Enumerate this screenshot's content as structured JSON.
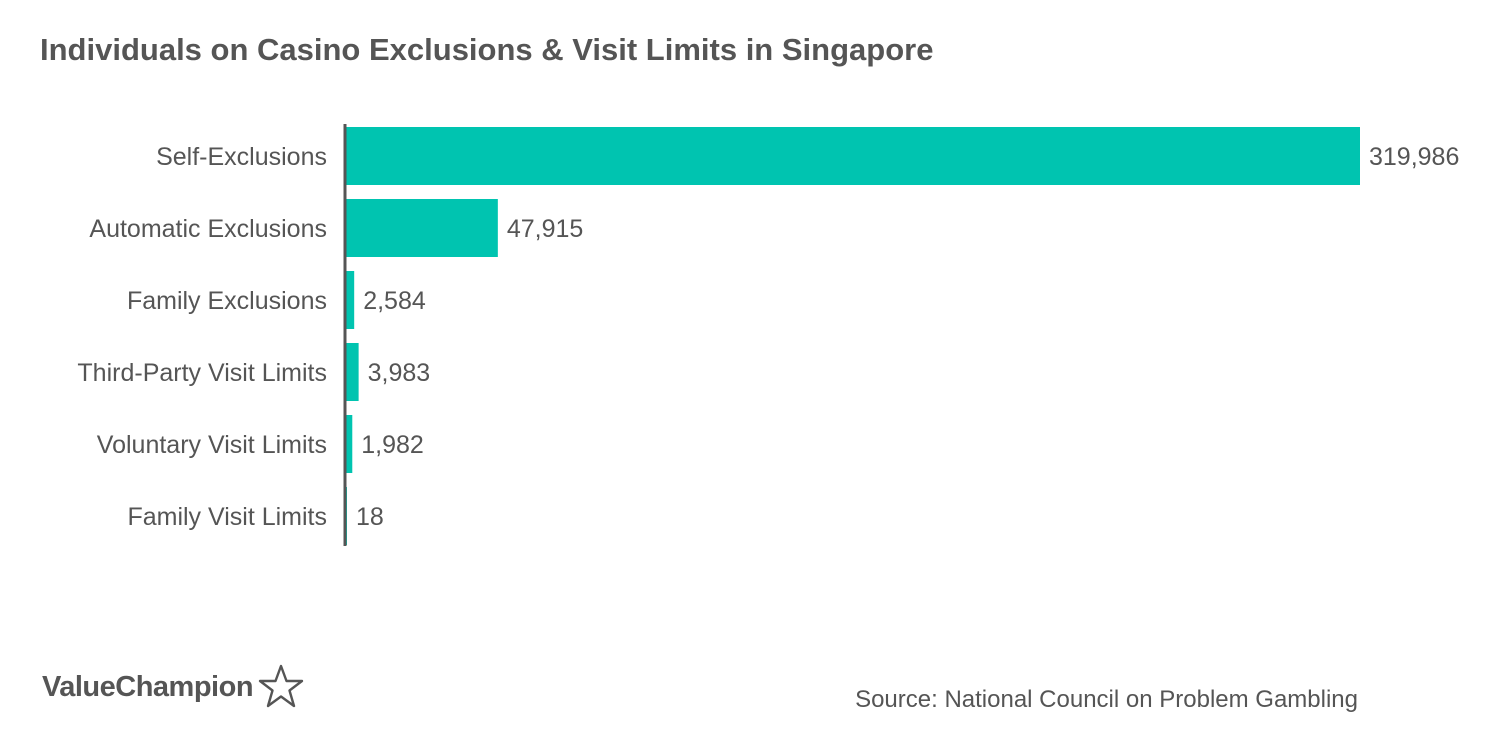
{
  "chart_data": {
    "type": "bar",
    "orientation": "horizontal",
    "title": "Individuals on Casino Exclusions & Visit Limits in Singapore",
    "categories": [
      "Self-Exclusions",
      "Automatic Exclusions",
      "Family Exclusions",
      "Third-Party Visit Limits",
      "Voluntary Visit Limits",
      "Family Visit Limits"
    ],
    "values": [
      319986,
      47915,
      2584,
      3983,
      1982,
      18
    ],
    "value_labels": [
      "319,986",
      "47,915",
      "2,584",
      "3,983",
      "1,982",
      "18"
    ],
    "xlim": [
      0,
      319986
    ],
    "grid": false,
    "legend": "none",
    "bar_color": "#00C4B0"
  },
  "footer": {
    "logo_text": "ValueChampion",
    "logo_icon": "star-outline-icon",
    "source": "Source: National Council on Problem Gambling"
  }
}
